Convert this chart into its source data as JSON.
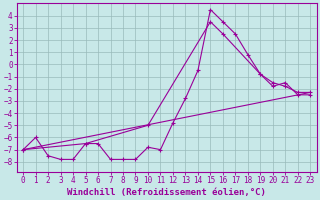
{
  "xlabel": "Windchill (Refroidissement éolien,°C)",
  "bg_color": "#c8e8e8",
  "line_color": "#990099",
  "grid_color": "#99bbbb",
  "xlim": [
    -0.5,
    23.5
  ],
  "ylim": [
    -8.8,
    5.0
  ],
  "xticks": [
    0,
    1,
    2,
    3,
    4,
    5,
    6,
    7,
    8,
    9,
    10,
    11,
    12,
    13,
    14,
    15,
    16,
    17,
    18,
    19,
    20,
    21,
    22,
    23
  ],
  "yticks": [
    -8,
    -7,
    -6,
    -5,
    -4,
    -3,
    -2,
    -1,
    0,
    1,
    2,
    3,
    4
  ],
  "series1_x": [
    0,
    1,
    2,
    3,
    4,
    5,
    6,
    7,
    8,
    9,
    10,
    11,
    12,
    13,
    14,
    15,
    16,
    17,
    18,
    19,
    20,
    21,
    22,
    23
  ],
  "series1_y": [
    -7.0,
    -6.0,
    -7.5,
    -7.8,
    -7.8,
    -6.5,
    -6.5,
    -7.8,
    -7.8,
    -7.8,
    -6.8,
    -7.0,
    -4.8,
    -2.8,
    -0.5,
    4.5,
    3.5,
    2.5,
    0.8,
    -0.8,
    -1.8,
    -1.5,
    -2.5,
    -2.5
  ],
  "series2_x": [
    0,
    5,
    10,
    15,
    16,
    19,
    20,
    21,
    22,
    23
  ],
  "series2_y": [
    -7.0,
    -6.5,
    -5.0,
    3.5,
    2.5,
    -0.8,
    -1.5,
    -1.8,
    -2.3,
    -2.3
  ],
  "series3_x": [
    0,
    23
  ],
  "series3_y": [
    -7.0,
    -2.3
  ],
  "tick_fontsize": 5.5,
  "label_fontsize": 6.5
}
